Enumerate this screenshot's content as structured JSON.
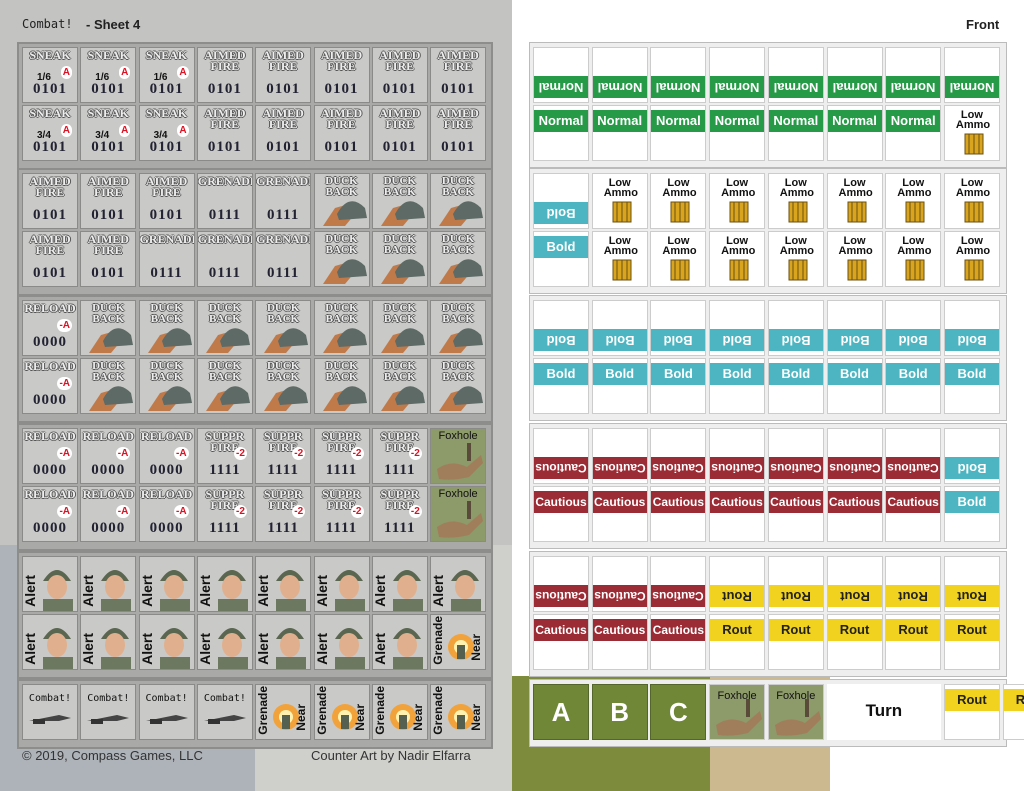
{
  "header": {
    "title": "Combat!",
    "sheet": "- Sheet 4",
    "side": "Front"
  },
  "footer": {
    "copyright": "© 2019, Compass Games, LLC",
    "credit": "Counter Art by Nadir Elfarra"
  },
  "left_sheet": {
    "rows": [
      [
        {
          "title": "SNEAK",
          "odds": "1/6",
          "mod": "A",
          "code": "0101"
        },
        {
          "title": "SNEAK",
          "odds": "1/6",
          "mod": "A",
          "code": "0101"
        },
        {
          "title": "SNEAK",
          "odds": "1/6",
          "mod": "A",
          "code": "0101"
        },
        {
          "title": "AIMED FIRE",
          "code": "0101"
        },
        {
          "title": "AIMED FIRE",
          "code": "0101"
        },
        {
          "title": "AIMED FIRE",
          "code": "0101"
        },
        {
          "title": "AIMED FIRE",
          "code": "0101"
        },
        {
          "title": "AIMED FIRE",
          "code": "0101"
        }
      ],
      [
        {
          "title": "SNEAK",
          "odds": "3/4",
          "mod": "A",
          "code": "0101"
        },
        {
          "title": "SNEAK",
          "odds": "3/4",
          "mod": "A",
          "code": "0101"
        },
        {
          "title": "SNEAK",
          "odds": "3/4",
          "mod": "A",
          "code": "0101"
        },
        {
          "title": "AIMED FIRE",
          "code": "0101"
        },
        {
          "title": "AIMED FIRE",
          "code": "0101"
        },
        {
          "title": "AIMED FIRE",
          "code": "0101"
        },
        {
          "title": "AIMED FIRE",
          "code": "0101"
        },
        {
          "title": "AIMED FIRE",
          "code": "0101"
        }
      ],
      [
        {
          "title": "AIMED FIRE",
          "code": "0101"
        },
        {
          "title": "AIMED FIRE",
          "code": "0101"
        },
        {
          "title": "AIMED FIRE",
          "code": "0101"
        },
        {
          "title": "GRENADE",
          "code": "0111"
        },
        {
          "title": "GRENADE",
          "code": "0111"
        },
        {
          "title": "DUCK BACK",
          "art": "duck"
        },
        {
          "title": "DUCK BACK",
          "art": "duck"
        },
        {
          "title": "DUCK BACK",
          "art": "duck"
        }
      ],
      [
        {
          "title": "AIMED FIRE",
          "code": "0101"
        },
        {
          "title": "AIMED FIRE",
          "code": "0101"
        },
        {
          "title": "GRENADE",
          "code": "0111"
        },
        {
          "title": "GRENADE",
          "code": "0111"
        },
        {
          "title": "GRENADE",
          "code": "0111"
        },
        {
          "title": "DUCK BACK",
          "art": "duck"
        },
        {
          "title": "DUCK BACK",
          "art": "duck"
        },
        {
          "title": "DUCK BACK",
          "art": "duck"
        }
      ],
      [
        {
          "title": "RELOAD",
          "mod": "-A",
          "code": "0000"
        },
        {
          "title": "DUCK BACK",
          "art": "duck"
        },
        {
          "title": "DUCK BACK",
          "art": "duck"
        },
        {
          "title": "DUCK BACK",
          "art": "duck"
        },
        {
          "title": "DUCK BACK",
          "art": "duck"
        },
        {
          "title": "DUCK BACK",
          "art": "duck"
        },
        {
          "title": "DUCK BACK",
          "art": "duck"
        },
        {
          "title": "DUCK BACK",
          "art": "duck"
        }
      ],
      [
        {
          "title": "RELOAD",
          "mod": "-A",
          "code": "0000"
        },
        {
          "title": "DUCK BACK",
          "art": "duck"
        },
        {
          "title": "DUCK BACK",
          "art": "duck"
        },
        {
          "title": "DUCK BACK",
          "art": "duck"
        },
        {
          "title": "DUCK BACK",
          "art": "duck"
        },
        {
          "title": "DUCK BACK",
          "art": "duck"
        },
        {
          "title": "DUCK BACK",
          "art": "duck"
        },
        {
          "title": "DUCK BACK",
          "art": "duck"
        }
      ],
      [
        {
          "title": "RELOAD",
          "mod": "-A",
          "code": "0000"
        },
        {
          "title": "RELOAD",
          "mod": "-A",
          "code": "0000"
        },
        {
          "title": "RELOAD",
          "mod": "-A",
          "code": "0000"
        },
        {
          "title": "SUPPR FIRE",
          "mod": "-2",
          "code": "1111"
        },
        {
          "title": "SUPPR FIRE",
          "mod": "-2",
          "code": "1111"
        },
        {
          "title": "SUPPR FIRE",
          "mod": "-2",
          "code": "1111"
        },
        {
          "title": "SUPPR FIRE",
          "mod": "-2",
          "code": "1111"
        },
        {
          "title": "Foxhole",
          "art": "foxhole"
        }
      ],
      [
        {
          "title": "RELOAD",
          "mod": "-A",
          "code": "0000"
        },
        {
          "title": "RELOAD",
          "mod": "-A",
          "code": "0000"
        },
        {
          "title": "RELOAD",
          "mod": "-A",
          "code": "0000"
        },
        {
          "title": "SUPPR FIRE",
          "mod": "-2",
          "code": "1111"
        },
        {
          "title": "SUPPR FIRE",
          "mod": "-2",
          "code": "1111"
        },
        {
          "title": "SUPPR FIRE",
          "mod": "-2",
          "code": "1111"
        },
        {
          "title": "SUPPR FIRE",
          "mod": "-2",
          "code": "1111"
        },
        {
          "title": "Foxhole",
          "art": "foxhole"
        }
      ],
      [
        {
          "title": "Alert",
          "art": "alert"
        },
        {
          "title": "Alert",
          "art": "alert"
        },
        {
          "title": "Alert",
          "art": "alert"
        },
        {
          "title": "Alert",
          "art": "alert"
        },
        {
          "title": "Alert",
          "art": "alert"
        },
        {
          "title": "Alert",
          "art": "alert"
        },
        {
          "title": "Alert",
          "art": "alert"
        },
        {
          "title": "Alert",
          "art": "alert"
        }
      ],
      [
        {
          "title": "Alert",
          "art": "alert"
        },
        {
          "title": "Alert",
          "art": "alert"
        },
        {
          "title": "Alert",
          "art": "alert"
        },
        {
          "title": "Alert",
          "art": "alert"
        },
        {
          "title": "Alert",
          "art": "alert"
        },
        {
          "title": "Alert",
          "art": "alert"
        },
        {
          "title": "Alert",
          "art": "alert"
        },
        {
          "title": "Grenade",
          "sub": "Near",
          "art": "grenade"
        }
      ],
      [
        {
          "title": "Combat!",
          "art": "combat"
        },
        {
          "title": "Combat!",
          "art": "combat"
        },
        {
          "title": "Combat!",
          "art": "combat"
        },
        {
          "title": "Combat!",
          "art": "combat"
        },
        {
          "title": "Grenade",
          "sub": "Near",
          "art": "grenade"
        },
        {
          "title": "Grenade",
          "sub": "Near",
          "art": "grenade"
        },
        {
          "title": "Grenade",
          "sub": "Near",
          "art": "grenade"
        },
        {
          "title": "Grenade",
          "sub": "Near",
          "art": "grenade"
        }
      ]
    ]
  },
  "right_sheet": {
    "rows": [
      [
        {
          "text": "Normal",
          "style": "normal",
          "flip": true
        },
        {
          "text": "Normal",
          "style": "normal",
          "flip": true
        },
        {
          "text": "Normal",
          "style": "normal",
          "flip": true
        },
        {
          "text": "Normal",
          "style": "normal",
          "flip": true
        },
        {
          "text": "Normal",
          "style": "normal",
          "flip": true
        },
        {
          "text": "Normal",
          "style": "normal",
          "flip": true
        },
        {
          "text": "Normal",
          "style": "normal",
          "flip": true
        },
        {
          "text": "Normal",
          "style": "normal",
          "flip": true
        }
      ],
      [
        {
          "text": "Normal",
          "style": "normal"
        },
        {
          "text": "Normal",
          "style": "normal"
        },
        {
          "text": "Normal",
          "style": "normal"
        },
        {
          "text": "Normal",
          "style": "normal"
        },
        {
          "text": "Normal",
          "style": "normal"
        },
        {
          "text": "Normal",
          "style": "normal"
        },
        {
          "text": "Normal",
          "style": "normal"
        },
        {
          "text": "Low Ammo",
          "style": "ammo"
        }
      ],
      [
        {
          "text": "Bold",
          "style": "bold",
          "flip": true
        },
        {
          "text": "Low Ammo",
          "style": "ammo"
        },
        {
          "text": "Low Ammo",
          "style": "ammo"
        },
        {
          "text": "Low Ammo",
          "style": "ammo"
        },
        {
          "text": "Low Ammo",
          "style": "ammo"
        },
        {
          "text": "Low Ammo",
          "style": "ammo"
        },
        {
          "text": "Low Ammo",
          "style": "ammo"
        },
        {
          "text": "Low Ammo",
          "style": "ammo"
        }
      ],
      [
        {
          "text": "Bold",
          "style": "bold"
        },
        {
          "text": "Low Ammo",
          "style": "ammo"
        },
        {
          "text": "Low Ammo",
          "style": "ammo"
        },
        {
          "text": "Low Ammo",
          "style": "ammo"
        },
        {
          "text": "Low Ammo",
          "style": "ammo"
        },
        {
          "text": "Low Ammo",
          "style": "ammo"
        },
        {
          "text": "Low Ammo",
          "style": "ammo"
        },
        {
          "text": "Low Ammo",
          "style": "ammo"
        }
      ],
      [
        {
          "text": "Bold",
          "style": "bold",
          "flip": true
        },
        {
          "text": "Bold",
          "style": "bold",
          "flip": true
        },
        {
          "text": "Bold",
          "style": "bold",
          "flip": true
        },
        {
          "text": "Bold",
          "style": "bold",
          "flip": true
        },
        {
          "text": "Bold",
          "style": "bold",
          "flip": true
        },
        {
          "text": "Bold",
          "style": "bold",
          "flip": true
        },
        {
          "text": "Bold",
          "style": "bold",
          "flip": true
        },
        {
          "text": "Bold",
          "style": "bold",
          "flip": true
        }
      ],
      [
        {
          "text": "Bold",
          "style": "bold"
        },
        {
          "text": "Bold",
          "style": "bold"
        },
        {
          "text": "Bold",
          "style": "bold"
        },
        {
          "text": "Bold",
          "style": "bold"
        },
        {
          "text": "Bold",
          "style": "bold"
        },
        {
          "text": "Bold",
          "style": "bold"
        },
        {
          "text": "Bold",
          "style": "bold"
        },
        {
          "text": "Bold",
          "style": "bold"
        }
      ],
      [
        {
          "text": "Cautious",
          "style": "cautious",
          "flip": true
        },
        {
          "text": "Cautious",
          "style": "cautious",
          "flip": true
        },
        {
          "text": "Cautious",
          "style": "cautious",
          "flip": true
        },
        {
          "text": "Cautious",
          "style": "cautious",
          "flip": true
        },
        {
          "text": "Cautious",
          "style": "cautious",
          "flip": true
        },
        {
          "text": "Cautious",
          "style": "cautious",
          "flip": true
        },
        {
          "text": "Cautious",
          "style": "cautious",
          "flip": true
        },
        {
          "text": "Bold",
          "style": "bold",
          "flip": true
        }
      ],
      [
        {
          "text": "Cautious",
          "style": "cautious"
        },
        {
          "text": "Cautious",
          "style": "cautious"
        },
        {
          "text": "Cautious",
          "style": "cautious"
        },
        {
          "text": "Cautious",
          "style": "cautious"
        },
        {
          "text": "Cautious",
          "style": "cautious"
        },
        {
          "text": "Cautious",
          "style": "cautious"
        },
        {
          "text": "Cautious",
          "style": "cautious"
        },
        {
          "text": "Bold",
          "style": "bold"
        }
      ],
      [
        {
          "text": "Cautious",
          "style": "cautious",
          "flip": true
        },
        {
          "text": "Cautious",
          "style": "cautious",
          "flip": true
        },
        {
          "text": "Cautious",
          "style": "cautious",
          "flip": true
        },
        {
          "text": "Rout",
          "style": "rout",
          "flip": true
        },
        {
          "text": "Rout",
          "style": "rout",
          "flip": true
        },
        {
          "text": "Rout",
          "style": "rout",
          "flip": true
        },
        {
          "text": "Rout",
          "style": "rout",
          "flip": true
        },
        {
          "text": "Rout",
          "style": "rout",
          "flip": true
        }
      ],
      [
        {
          "text": "Cautious",
          "style": "cautious"
        },
        {
          "text": "Cautious",
          "style": "cautious"
        },
        {
          "text": "Cautious",
          "style": "cautious"
        },
        {
          "text": "Rout",
          "style": "rout"
        },
        {
          "text": "Rout",
          "style": "rout"
        },
        {
          "text": "Rout",
          "style": "rout"
        },
        {
          "text": "Rout",
          "style": "rout"
        },
        {
          "text": "Rout",
          "style": "rout"
        }
      ],
      [
        {
          "text": "A",
          "style": "letter"
        },
        {
          "text": "B",
          "style": "letter"
        },
        {
          "text": "C",
          "style": "letter"
        },
        {
          "text": "Foxhole",
          "style": "foxhole"
        },
        {
          "text": "Foxhole",
          "style": "foxhole"
        },
        {
          "text": "Turn",
          "style": "turn"
        },
        {
          "text": "Rout",
          "style": "rout"
        },
        {
          "text": "Rout",
          "style": "rout"
        }
      ]
    ]
  }
}
